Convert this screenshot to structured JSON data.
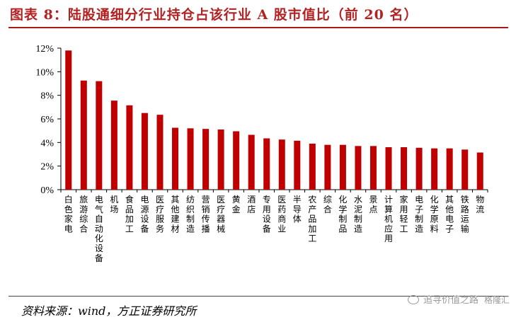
{
  "title": "图表 8：陆股通细分行业持仓占该行业 A 股市值比（前 20 名）",
  "source": "资料来源：wind，方正证券研究所",
  "watermark": {
    "icon": "wechat-icon",
    "label": "追寻价值之路",
    "brand": "格隆汇"
  },
  "colors": {
    "bar": "#c00000",
    "title": "#b22222"
  },
  "chart_data": {
    "type": "bar",
    "title": "图表 8：陆股通细分行业持仓占该行业 A 股市值比（前 20 名）",
    "xlabel": "",
    "ylabel": "",
    "ylim": [
      0,
      12
    ],
    "yticks": [
      0,
      2,
      4,
      6,
      8,
      10,
      12
    ],
    "ytick_labels": [
      "0%",
      "2%",
      "4%",
      "6%",
      "8%",
      "10%",
      "12%"
    ],
    "grid": false,
    "legend": "none",
    "categories": [
      "白色家电",
      "旅游综合",
      "电气自动化设备",
      "机场",
      "食品加工",
      "电源设备",
      "医疗服务",
      "其他建材",
      "纺织制造",
      "营销传播",
      "医疗器械",
      "黄金",
      "酒店",
      "专用设备",
      "医药商业",
      "半导体",
      "农产品加工",
      "综合",
      "化学制品",
      "水泥制造",
      "景点",
      "计算机应用",
      "家用轻工",
      "电子制造",
      "化学原料",
      "其他电子",
      "铁路运输",
      "物流"
    ],
    "values": [
      11.8,
      9.25,
      9.2,
      7.55,
      7.15,
      6.5,
      6.35,
      5.25,
      5.2,
      5.15,
      5.1,
      4.95,
      4.65,
      4.35,
      4.25,
      4.15,
      3.9,
      3.8,
      3.8,
      3.7,
      3.7,
      3.6,
      3.6,
      3.55,
      3.5,
      3.5,
      3.4,
      3.15
    ]
  }
}
